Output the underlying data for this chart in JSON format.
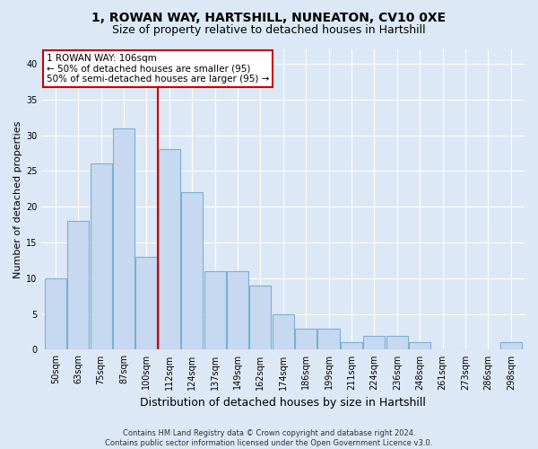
{
  "title": "1, ROWAN WAY, HARTSHILL, NUNEATON, CV10 0XE",
  "subtitle": "Size of property relative to detached houses in Hartshill",
  "xlabel": "Distribution of detached houses by size in Hartshill",
  "ylabel": "Number of detached properties",
  "categories": [
    "50sqm",
    "63sqm",
    "75sqm",
    "87sqm",
    "100sqm",
    "112sqm",
    "124sqm",
    "137sqm",
    "149sqm",
    "162sqm",
    "174sqm",
    "186sqm",
    "199sqm",
    "211sqm",
    "224sqm",
    "236sqm",
    "248sqm",
    "261sqm",
    "273sqm",
    "286sqm",
    "298sqm"
  ],
  "values": [
    10,
    18,
    26,
    31,
    13,
    28,
    22,
    11,
    11,
    9,
    5,
    3,
    3,
    1,
    2,
    2,
    1,
    0,
    0,
    0,
    1
  ],
  "bar_color": "#c6d9f0",
  "bar_edge_color": "#7bafd4",
  "vline_x_index": 4.5,
  "vline_color": "#cc0000",
  "annotation_text": "1 ROWAN WAY: 106sqm\n← 50% of detached houses are smaller (95)\n50% of semi-detached houses are larger (95) →",
  "annotation_box_facecolor": "#ffffff",
  "annotation_box_edgecolor": "#cc0000",
  "footer_text": "Contains HM Land Registry data © Crown copyright and database right 2024.\nContains public sector information licensed under the Open Government Licence v3.0.",
  "ylim": [
    0,
    42
  ],
  "yticks": [
    0,
    5,
    10,
    15,
    20,
    25,
    30,
    35,
    40
  ],
  "fig_facecolor": "#dce8f5",
  "ax_facecolor": "#dce8f5",
  "grid_color": "#ffffff",
  "title_fontsize": 10,
  "subtitle_fontsize": 9,
  "tick_fontsize": 7,
  "ylabel_fontsize": 8,
  "xlabel_fontsize": 9
}
